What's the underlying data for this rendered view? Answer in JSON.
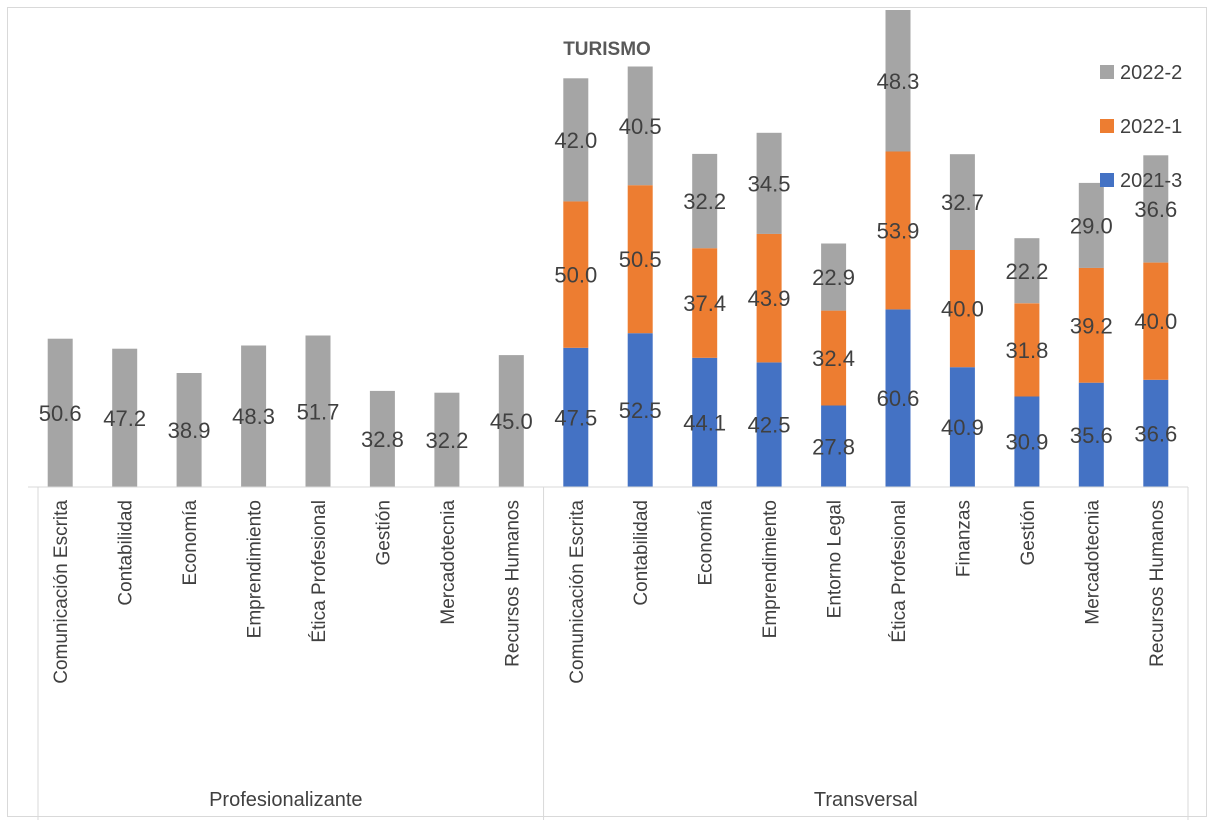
{
  "chart_data": {
    "type": "bar",
    "stacked": true,
    "title": "TURISMO",
    "legend_position": "top-right",
    "grid": false,
    "groups": [
      {
        "name": "Profesionalizante",
        "categories": [
          "Comunicación Escrita",
          "Contabilidad",
          "Economía",
          "Emprendimiento",
          "Ética Profesional",
          "Gestión",
          "Mercadotecnia",
          "Recursos Humanos"
        ]
      },
      {
        "name": "Transversal",
        "categories": [
          "Comunicación Escrita",
          "Contabilidad",
          "Economía",
          "Emprendimiento",
          "Entorno Legal",
          "Ética Profesional",
          "Finanzas",
          "Gestión",
          "Mercadotecnia",
          "Recursos Humanos"
        ]
      }
    ],
    "series": [
      {
        "name": "2021-3",
        "color": "#4472c4",
        "values": [
          null,
          null,
          null,
          null,
          null,
          null,
          null,
          null,
          47.5,
          52.5,
          44.1,
          42.5,
          27.8,
          60.6,
          40.9,
          30.9,
          35.6,
          36.6
        ]
      },
      {
        "name": "2022-1",
        "color": "#ed7d31",
        "values": [
          null,
          null,
          null,
          null,
          null,
          null,
          null,
          null,
          50.0,
          50.5,
          37.4,
          43.9,
          32.4,
          53.9,
          40.0,
          31.8,
          39.2,
          40.0
        ]
      },
      {
        "name": "2022-2",
        "color": "#a5a5a5",
        "values": [
          50.6,
          47.2,
          38.9,
          48.3,
          51.7,
          32.8,
          32.2,
          45.0,
          42.0,
          40.5,
          32.2,
          34.5,
          22.9,
          48.3,
          32.7,
          22.2,
          29.0,
          36.6
        ]
      }
    ],
    "legend_order": [
      "2022-2",
      "2022-1",
      "2021-3"
    ]
  }
}
